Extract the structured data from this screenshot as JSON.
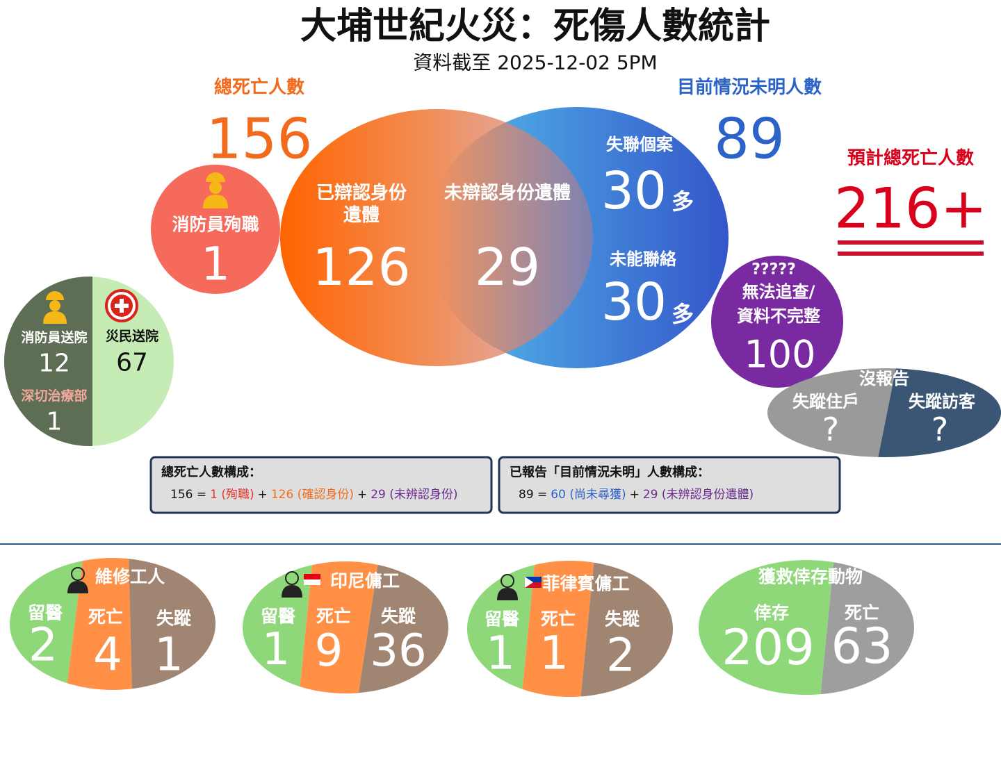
{
  "header": {
    "title": "大埔世紀火災：死傷人數統計",
    "subtitle": "資料截至 2025-12-02 5PM"
  },
  "total_deaths": {
    "label": "總死亡人數",
    "value": 156
  },
  "unknown_status": {
    "label": "目前情況未明人數",
    "value": 89
  },
  "estimated_total": {
    "label": "預計總死亡人數",
    "value": "216+"
  },
  "firefighter_deaths": {
    "label": "消防員殉職",
    "value": 1
  },
  "venn": {
    "identified": {
      "label_lines": [
        "已辯認身份",
        "遺體"
      ],
      "value": 126
    },
    "unidentified": {
      "label": "未辯認身份遺體",
      "value": 29
    },
    "missing": {
      "label": "失聯個案",
      "value": 30,
      "suffix": "多"
    },
    "unreachable": {
      "label": "未能聯絡",
      "value": 30,
      "suffix": "多"
    }
  },
  "hospital": {
    "firefighters": {
      "label": "消防員送院",
      "value": 12
    },
    "icu": {
      "label": "深切治療部",
      "value": 1
    },
    "civilians": {
      "label": "災民送院",
      "value": 67
    }
  },
  "untraceable": {
    "marks": "?????",
    "label_lines": [
      "無法追查/",
      "資料不完整"
    ],
    "value": 100
  },
  "unreported": {
    "title": "沒報告",
    "residents": {
      "label": "失蹤住戶",
      "value": "?"
    },
    "visitors": {
      "label": "失蹤訪客",
      "value": "?"
    }
  },
  "composition": [
    {
      "title": "總死亡人數構成：",
      "parts": [
        {
          "text": "156 =",
          "color": "#111111"
        },
        {
          "text": "1 (殉職)",
          "color": "#e8372c"
        },
        {
          "text": "+",
          "color": "#111111"
        },
        {
          "text": "126 (確認身份)",
          "color": "#f26b1d"
        },
        {
          "text": "+",
          "color": "#111111"
        },
        {
          "text": "29 (未辨認身份)",
          "color": "#6b2a8e"
        }
      ]
    },
    {
      "title": "已報告「目前情況未明」人數構成：",
      "parts": [
        {
          "text": "89 =",
          "color": "#111111"
        },
        {
          "text": "60 (尚未尋獲)",
          "color": "#2b63c9"
        },
        {
          "text": "+",
          "color": "#111111"
        },
        {
          "text": "29 (未辨認身份遺體)",
          "color": "#6b2a8e"
        }
      ]
    }
  ],
  "groups": [
    {
      "title": "維修工人",
      "segments": [
        {
          "label": "留醫",
          "value": 2,
          "color": "#8fd87a"
        },
        {
          "label": "死亡",
          "value": 4,
          "color": "#ff9045"
        },
        {
          "label": "失蹤",
          "value": 1,
          "color": "#a08572"
        }
      ]
    },
    {
      "title": "印尼傭工",
      "segments": [
        {
          "label": "留醫",
          "value": 1,
          "color": "#8fd87a"
        },
        {
          "label": "死亡",
          "value": 9,
          "color": "#ff9045"
        },
        {
          "label": "失蹤",
          "value": 36,
          "color": "#a08572"
        }
      ]
    },
    {
      "title": "菲律賓傭工",
      "segments": [
        {
          "label": "留醫",
          "value": 1,
          "color": "#8fd87a"
        },
        {
          "label": "死亡",
          "value": 1,
          "color": "#ff9045"
        },
        {
          "label": "失蹤",
          "value": 2,
          "color": "#a08572"
        }
      ]
    },
    {
      "title": "獲救倖存動物",
      "segments": [
        {
          "label": "倖存",
          "value": 209,
          "color": "#8fd87a"
        },
        {
          "label": "死亡",
          "value": 63,
          "color": "#9e9e9e"
        }
      ]
    }
  ]
}
